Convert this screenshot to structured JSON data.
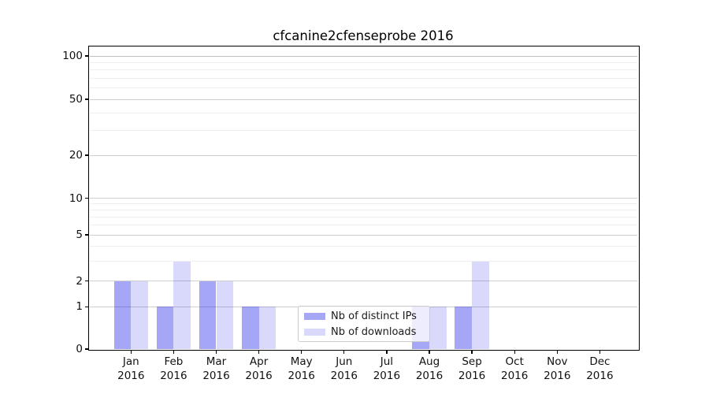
{
  "chart_data": {
    "type": "bar",
    "title": "cfcanine2cfenseprobe 2016",
    "x_tick_months": [
      "Jan",
      "Feb",
      "Mar",
      "Apr",
      "May",
      "Jun",
      "Jul",
      "Aug",
      "Sep",
      "Oct",
      "Nov",
      "Dec"
    ],
    "x_tick_year": "2016",
    "series": [
      {
        "name": "Nb of distinct IPs",
        "color": "rgba(0,0,230,0.35)",
        "values": [
          2,
          1,
          2,
          1,
          0,
          0,
          0,
          1,
          1,
          0,
          0,
          0
        ]
      },
      {
        "name": "Nb of downloads",
        "color": "rgba(0,0,230,0.15)",
        "values": [
          2,
          3,
          2,
          1,
          0,
          0,
          0,
          1,
          3,
          0,
          0,
          0
        ]
      }
    ],
    "y_ticks": [
      0,
      1,
      2,
      5,
      10,
      20,
      50,
      100
    ],
    "y_minor_gridlines": [
      3,
      4,
      6,
      7,
      8,
      9,
      30,
      40,
      60,
      70,
      80,
      90
    ],
    "y_scale": "log-like, compressed toward 0, baseline at 0",
    "ylim": [
      0,
      110
    ],
    "grid": "horizontal major and minor gridlines",
    "legend_position": "inside axes, lower center-right",
    "colors": {
      "distinct_ips_rendered": "#a6a6f6",
      "downloads_rendered": "#d9d9fb",
      "grid_major": "#cfcfcf",
      "grid_minor": "#efefef",
      "spine": "#000000",
      "background": "#ffffff"
    }
  }
}
